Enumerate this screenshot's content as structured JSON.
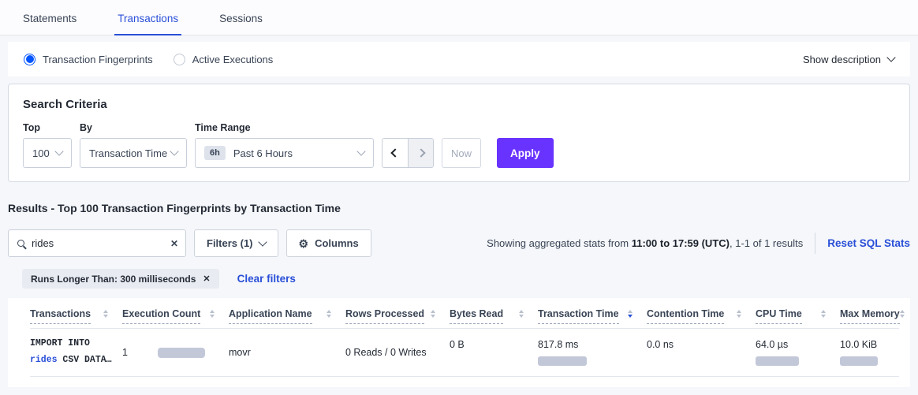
{
  "tabs": [
    {
      "label": "Statements"
    },
    {
      "label": "Transactions"
    },
    {
      "label": "Sessions"
    }
  ],
  "view_toggle": {
    "fingerprints_label": "Transaction Fingerprints",
    "active_executions_label": "Active Executions",
    "show_description_label": "Show description"
  },
  "search_criteria": {
    "title": "Search Criteria",
    "top_label": "Top",
    "top_value": "100",
    "by_label": "By",
    "by_value": "Transaction Time",
    "time_range_label": "Time Range",
    "time_range_badge": "6h",
    "time_range_value": "Past 6 Hours",
    "now_label": "Now",
    "apply_label": "Apply"
  },
  "results": {
    "heading": "Results - Top 100 Transaction Fingerprints by Transaction Time",
    "search_value": "rides",
    "filters_button": "Filters (1)",
    "columns_button": "Columns",
    "stats_prefix": "Showing aggregated stats from ",
    "stats_bold": "11:00 to 17:59 (UTC)",
    "stats_suffix": ", 1-1 of 1 results",
    "reset_link": "Reset SQL Stats",
    "filter_pill": "Runs Longer Than: 300 milliseconds",
    "clear_filters": "Clear filters"
  },
  "table": {
    "headers": [
      {
        "label": "Transactions",
        "sort": "none"
      },
      {
        "label": "Execution Count",
        "sort": "none"
      },
      {
        "label": "Application Name",
        "sort": "none"
      },
      {
        "label": "Rows Processed",
        "sort": "none"
      },
      {
        "label": "Bytes Read",
        "sort": "none"
      },
      {
        "label": "Transaction Time",
        "sort": "desc"
      },
      {
        "label": "Contention Time",
        "sort": "none"
      },
      {
        "label": "CPU Time",
        "sort": "none"
      },
      {
        "label": "Max Memory",
        "sort": "none"
      }
    ],
    "row": {
      "transaction_line1": "IMPORT INTO",
      "transaction_link": "rides",
      "transaction_line2_rest": " CSV DATA…",
      "execution_count": "1",
      "application_name": "movr",
      "rows_processed": "0 Reads / 0 Writes",
      "bytes_read": "0 B",
      "transaction_time": "817.8 ms",
      "contention_time": "0.0 ns",
      "cpu_time": "64.0 µs",
      "max_memory": "10.0 KiB"
    }
  },
  "colors": {
    "accent_blue": "#2a4fd8",
    "radio_blue": "#0055ff",
    "apply_purple": "#6933ff",
    "bar_fill": "#c3c8d9"
  }
}
